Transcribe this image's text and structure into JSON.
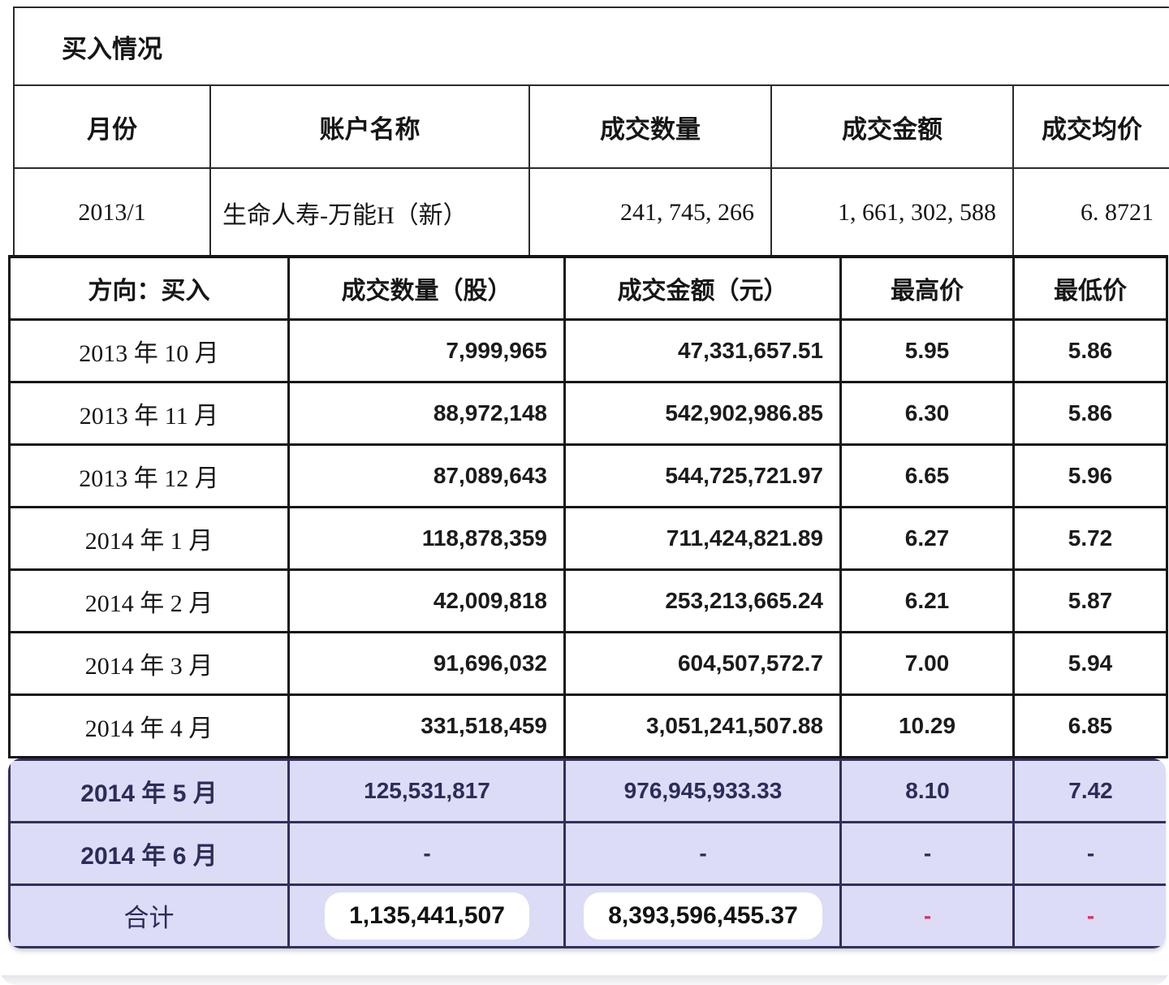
{
  "buy_table": {
    "title": "买入情况",
    "columns": [
      "月份",
      "账户名称",
      "成交数量",
      "成交金额",
      "成交均价"
    ],
    "rows": [
      {
        "month": "2013/1",
        "account": "生命人寿-万能H（新）",
        "volume": "241, 745, 266",
        "amount": "1, 661, 302, 588",
        "avg_price": "6. 8721"
      }
    ]
  },
  "monthly_table": {
    "columns": [
      "方向：买入",
      "成交数量（股）",
      "成交金额（元）",
      "最高价",
      "最低价"
    ],
    "rows": [
      {
        "month": "2013 年 10 月",
        "volume": "7,999,965",
        "amount": "47,331,657.51",
        "high": "5.95",
        "low": "5.86",
        "highlighted": false
      },
      {
        "month": "2013 年 11 月",
        "volume": "88,972,148",
        "amount": "542,902,986.85",
        "high": "6.30",
        "low": "5.86",
        "highlighted": false
      },
      {
        "month": "2013 年 12 月",
        "volume": "87,089,643",
        "amount": "544,725,721.97",
        "high": "6.65",
        "low": "5.96",
        "highlighted": false
      },
      {
        "month": "2014 年 1 月",
        "volume": "118,878,359",
        "amount": "711,424,821.89",
        "high": "6.27",
        "low": "5.72",
        "highlighted": false
      },
      {
        "month": "2014 年 2 月",
        "volume": "42,009,818",
        "amount": "253,213,665.24",
        "high": "6.21",
        "low": "5.87",
        "highlighted": false
      },
      {
        "month": "2014 年 3 月",
        "volume": "91,696,032",
        "amount": "604,507,572.7",
        "high": "7.00",
        "low": "5.94",
        "highlighted": false
      },
      {
        "month": "2014 年 4 月",
        "volume": "331,518,459",
        "amount": "3,051,241,507.88",
        "high": "10.29",
        "low": "6.85",
        "highlighted": false
      },
      {
        "month": "2014 年 5 月",
        "volume": "125,531,817",
        "amount": "976,945,933.33",
        "high": "8.10",
        "low": "7.42",
        "highlighted": true
      },
      {
        "month": "2014 年 6 月",
        "volume": "-",
        "amount": "-",
        "high": "-",
        "low": "-",
        "highlighted": true
      },
      {
        "month": "合计",
        "volume": "1,135,441,507",
        "amount": "8,393,596,455.37",
        "high": "-",
        "low": "-",
        "highlighted": true
      }
    ]
  },
  "colors": {
    "highlight_background": "#dcdcf6",
    "highlight_border": "#30305e",
    "highlight_text": "#2c2c5a",
    "negative_dash": "#de3163",
    "table_border": "#161616",
    "pill_background": "#ffffff"
  }
}
